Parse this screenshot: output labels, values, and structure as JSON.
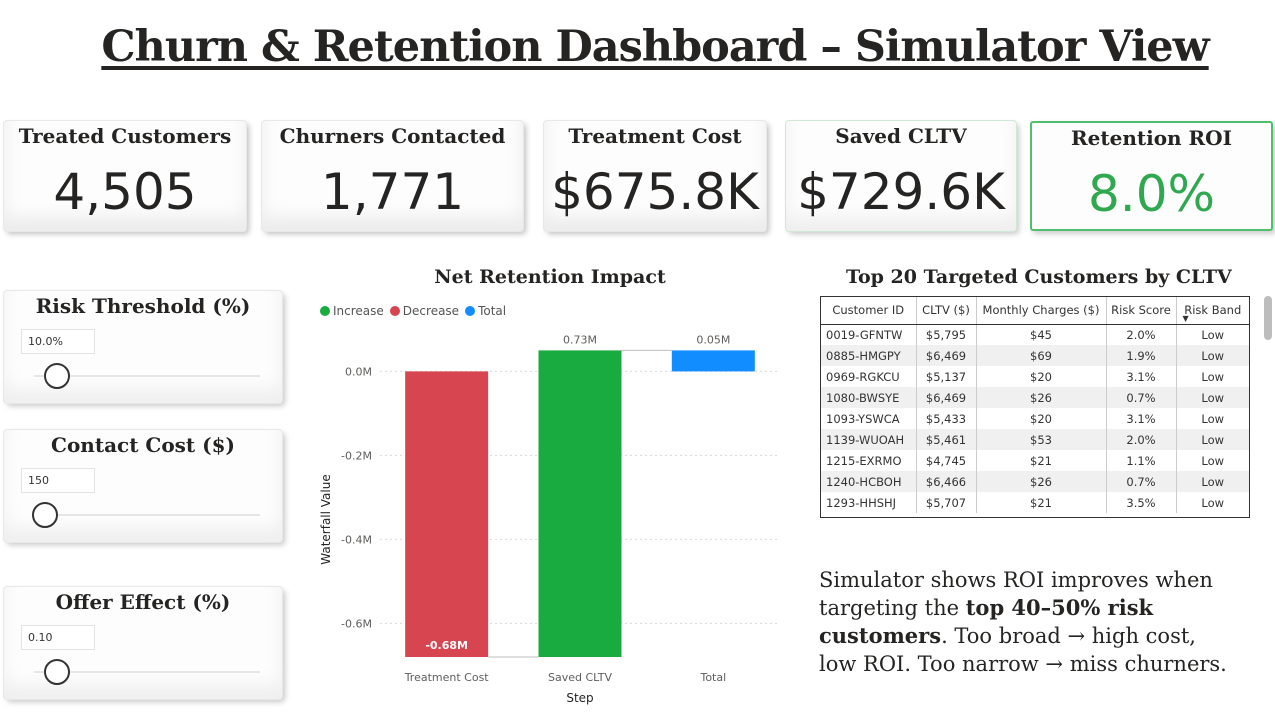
{
  "title": "Churn & Retention Dashboard – Simulator View",
  "kpis": [
    {
      "label": "Treated Customers",
      "value": "4,505"
    },
    {
      "label": "Churners Contacted",
      "value": "1,771"
    },
    {
      "label": "Treatment Cost",
      "value": "$675.8K"
    },
    {
      "label": "Saved CLTV",
      "value": "$729.6K"
    },
    {
      "label": "Retention ROI",
      "value": "8.0%"
    }
  ],
  "slicers": [
    {
      "label": "Risk Threshold (%)",
      "value": "10.0%",
      "level": 0.1
    },
    {
      "label": "Contact Cost ($)",
      "value": "150",
      "level": 0.05
    },
    {
      "label": "Offer Effect (%)",
      "value": "0.10",
      "level": 0.1
    }
  ],
  "colors": {
    "increase": "#1aab40",
    "decrease": "#d64550",
    "total": "#118dff",
    "roi_green": "#2fa84f"
  },
  "chart_data": {
    "type": "bar",
    "subtype": "waterfall",
    "title": "Net Retention Impact",
    "legend": [
      "Increase",
      "Decrease",
      "Total"
    ],
    "legend_position": "top-left",
    "xlabel": "Step",
    "ylabel": "Waterfall Value",
    "categories": [
      "Treatment Cost",
      "Saved CLTV",
      "Total"
    ],
    "values": [
      -0.68,
      0.73,
      0.05
    ],
    "kinds": [
      "Decrease",
      "Increase",
      "Total"
    ],
    "data_labels": [
      "-0.68M",
      "0.73M",
      "0.05M"
    ],
    "yticks": [
      "0.0M",
      "-0.2M",
      "-0.4M",
      "-0.6M"
    ],
    "ylim": [
      -0.68,
      0.07
    ],
    "grid": true
  },
  "table": {
    "title": "Top 20 Targeted Customers by CLTV",
    "columns": [
      "Customer ID",
      "CLTV ($)",
      "Monthly Charges ($)",
      "Risk Score",
      "Risk Band"
    ],
    "rows": [
      [
        "0019-GFNTW",
        "$5,795",
        "$45",
        "2.0%",
        "Low"
      ],
      [
        "0885-HMGPY",
        "$6,469",
        "$69",
        "1.9%",
        "Low"
      ],
      [
        "0969-RGKCU",
        "$5,137",
        "$20",
        "3.1%",
        "Low"
      ],
      [
        "1080-BWSYE",
        "$6,469",
        "$26",
        "0.7%",
        "Low"
      ],
      [
        "1093-YSWCA",
        "$5,433",
        "$20",
        "3.1%",
        "Low"
      ],
      [
        "1139-WUOAH",
        "$5,461",
        "$53",
        "2.0%",
        "Low"
      ],
      [
        "1215-EXRMO",
        "$4,745",
        "$21",
        "1.1%",
        "Low"
      ],
      [
        "1240-HCBOH",
        "$6,466",
        "$26",
        "0.7%",
        "Low"
      ],
      [
        "1293-HHSHJ",
        "$5,707",
        "$21",
        "3.5%",
        "Low"
      ]
    ]
  },
  "note": {
    "part1": "Simulator shows ROI improves when targeting the ",
    "bold": "top 40–50% risk customers",
    "part2": ". Too broad → high cost, low ROI. Too narrow → miss churners."
  }
}
